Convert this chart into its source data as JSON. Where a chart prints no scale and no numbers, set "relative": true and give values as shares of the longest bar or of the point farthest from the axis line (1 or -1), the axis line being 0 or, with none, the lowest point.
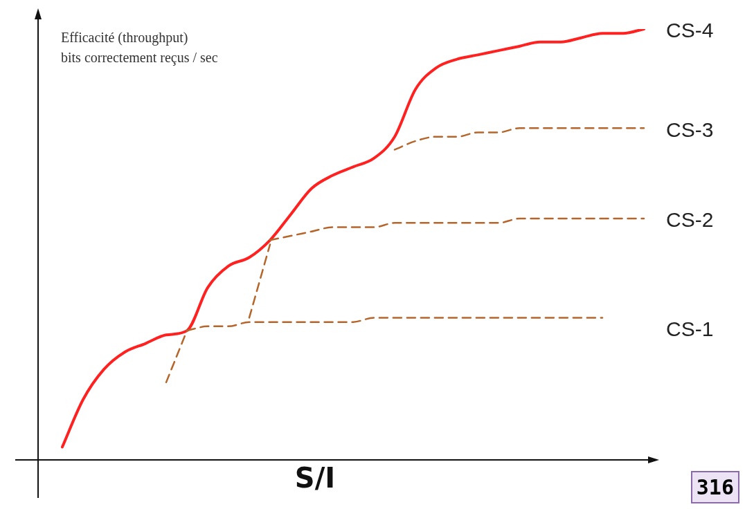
{
  "chart_data": {
    "type": "line",
    "relative": true,
    "ylabel": "Efficacité (throughput)\nbits correctement reçus / sec",
    "xlabel": "S/I",
    "annotations": [
      "316"
    ],
    "legend": false,
    "grid": false,
    "marker": "none",
    "categories": [
      null,
      null,
      null,
      null,
      null,
      null,
      null,
      null,
      null,
      null,
      null,
      null,
      null,
      null,
      null,
      null,
      null,
      null,
      null,
      null,
      null,
      null,
      null,
      null,
      null,
      null,
      null,
      null,
      null
    ],
    "series": [
      {
        "name": "CS-1",
        "color": "#b5652a",
        "line_style": "dashed",
        "values": [
          null,
          null,
          null,
          null,
          null,
          null,
          0.3,
          0.31,
          0.31,
          0.32,
          0.32,
          0.32,
          0.32,
          0.32,
          0.32,
          0.33,
          0.33,
          0.33,
          0.33,
          0.33,
          0.33,
          0.33,
          0.33,
          0.33,
          0.33,
          0.33,
          0.33,
          null,
          null
        ]
      },
      {
        "name": "CS-2",
        "color": "#b5652a",
        "line_style": "dashed",
        "values": [
          null,
          null,
          null,
          null,
          null,
          0.18,
          0.3,
          null,
          null,
          null,
          0.51,
          0.52,
          0.53,
          0.54,
          0.54,
          0.54,
          0.55,
          0.55,
          0.55,
          0.55,
          0.55,
          0.55,
          0.56,
          0.56,
          0.56,
          0.56,
          0.56,
          0.56,
          0.56
        ]
      },
      {
        "name": "CS-3",
        "color": "#b5652a",
        "line_style": "dashed",
        "values": [
          null,
          null,
          null,
          null,
          null,
          null,
          null,
          null,
          null,
          0.33,
          0.5,
          null,
          null,
          null,
          null,
          null,
          0.72,
          0.74,
          0.75,
          0.75,
          0.76,
          0.76,
          0.77,
          0.77,
          0.77,
          0.77,
          0.77,
          0.77,
          0.77
        ]
      },
      {
        "name": "CS-4",
        "color": "#ff2020",
        "line_style": "solid",
        "values": [
          0.03,
          0.14,
          0.21,
          0.25,
          0.27,
          0.29,
          0.3,
          0.4,
          0.45,
          0.47,
          0.51,
          0.57,
          0.63,
          0.66,
          0.68,
          0.7,
          0.75,
          0.86,
          0.91,
          0.93,
          0.94,
          0.95,
          0.96,
          0.97,
          0.97,
          0.98,
          0.99,
          0.99,
          1
        ]
      }
    ]
  }
}
